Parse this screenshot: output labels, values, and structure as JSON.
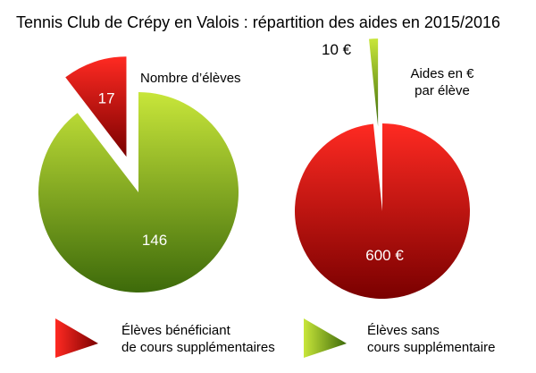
{
  "title": "Tennis Club de Crépy en Valois : répartition des aides en 2015/2016",
  "colors": {
    "red_light": "#ff2a22",
    "red_dark": "#7a0000",
    "green_light": "#c8e63a",
    "green_dark": "#3d6a0a"
  },
  "legend": {
    "red_label_line1": "Élèves bénéficiant",
    "red_label_line2": "de cours supplémentaires",
    "green_label_line1": "Élèves sans",
    "green_label_line2": "cours supplémentaire"
  },
  "chart_data": [
    {
      "type": "pie",
      "annotation": "Nombre d’élèves",
      "labels": [
        "Élèves bénéficiant de cours supplémentaires",
        "Élèves sans cours supplémentaire"
      ],
      "values": [
        17,
        146
      ],
      "value_labels": [
        "17",
        "146"
      ],
      "exploded": [
        true,
        false
      ],
      "colors": [
        "red",
        "green"
      ]
    },
    {
      "type": "pie",
      "annotation_line1": "Aides en €",
      "annotation_line2": "par élève",
      "labels": [
        "Élèves bénéficiant de cours supplémentaires",
        "Élèves sans cours supplémentaire"
      ],
      "values": [
        600,
        10
      ],
      "value_labels": [
        "600 €",
        "10 €"
      ],
      "exploded": [
        false,
        true
      ],
      "colors": [
        "red",
        "green"
      ]
    }
  ]
}
